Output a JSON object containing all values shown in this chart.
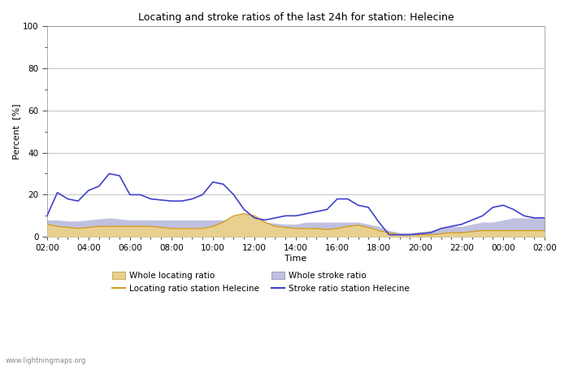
{
  "title": "Locating and stroke ratios of the last 24h for station: Helecine",
  "xlabel": "Time",
  "ylabel": "Percent  [%]",
  "xlim": [
    0,
    24
  ],
  "ylim": [
    0,
    100
  ],
  "yticks": [
    0,
    20,
    40,
    60,
    80,
    100
  ],
  "xtick_labels": [
    "02:00",
    "04:00",
    "06:00",
    "08:00",
    "10:00",
    "12:00",
    "14:00",
    "16:00",
    "18:00",
    "20:00",
    "22:00",
    "00:00",
    "02:00"
  ],
  "watermark": "www.lightningmaps.org",
  "background_color": "#ffffff",
  "plot_bg_color": "#ffffff",
  "whole_locating_color": "#e8d090",
  "whole_stroke_color": "#c0c0e0",
  "locating_line_color": "#d4a020",
  "stroke_line_color": "#4040cc",
  "time_hours": [
    0,
    0.5,
    1,
    1.5,
    2,
    2.5,
    3,
    3.5,
    4,
    4.5,
    5,
    5.5,
    6,
    6.5,
    7,
    7.5,
    8,
    8.5,
    9,
    9.5,
    10,
    10.5,
    11,
    11.5,
    12,
    12.5,
    13,
    13.5,
    14,
    14.5,
    15,
    15.5,
    16,
    16.5,
    17,
    17.5,
    18,
    18.5,
    19,
    19.5,
    20,
    20.5,
    21,
    21.5,
    22,
    22.5,
    23,
    23.5,
    24
  ],
  "whole_locating_ratio": [
    6,
    5,
    4.5,
    4,
    4.5,
    5,
    5,
    5,
    5,
    5,
    5,
    4.5,
    4,
    4,
    4,
    4,
    5,
    7,
    10,
    11,
    10,
    7,
    5,
    4.5,
    4,
    4,
    4,
    3.5,
    4,
    5,
    5.5,
    4.5,
    3,
    2,
    1,
    1,
    1,
    1,
    1.5,
    2,
    2,
    2.5,
    3,
    3,
    3,
    3,
    3,
    3,
    3
  ],
  "whole_stroke_ratio": [
    8,
    8,
    7.5,
    7.5,
    8,
    8.5,
    9,
    8.5,
    8,
    8,
    8,
    8,
    8,
    8,
    8,
    8,
    8,
    8,
    9,
    9,
    8,
    7,
    6.5,
    6,
    6,
    7,
    7,
    7,
    7,
    7,
    7,
    6,
    5,
    3,
    2,
    2,
    2.5,
    3,
    4,
    5,
    5,
    6,
    7,
    7,
    8,
    9,
    9,
    9,
    9
  ],
  "locating_ratio_station": [
    6,
    5,
    4.5,
    4,
    4.5,
    5,
    5,
    5,
    5,
    5,
    5,
    4.5,
    4,
    4,
    4,
    4,
    5,
    7,
    10,
    11,
    10,
    7,
    5,
    4.5,
    4,
    4,
    4,
    3.5,
    4,
    5,
    5.5,
    4.5,
    3,
    2,
    1,
    1,
    1,
    1,
    1.5,
    2,
    2,
    2.5,
    3,
    3,
    3,
    3,
    3,
    3,
    3
  ],
  "stroke_ratio_station": [
    10,
    21,
    18,
    17,
    22,
    24,
    30,
    29,
    20,
    20,
    18,
    17.5,
    17,
    17,
    18,
    20,
    26,
    25,
    20,
    13,
    9,
    8,
    9,
    10,
    10,
    11,
    12,
    13,
    18,
    18,
    15,
    14,
    7,
    1,
    1,
    1,
    1.5,
    2,
    4,
    5,
    6,
    8,
    10,
    14,
    15,
    13,
    10,
    9,
    9
  ]
}
